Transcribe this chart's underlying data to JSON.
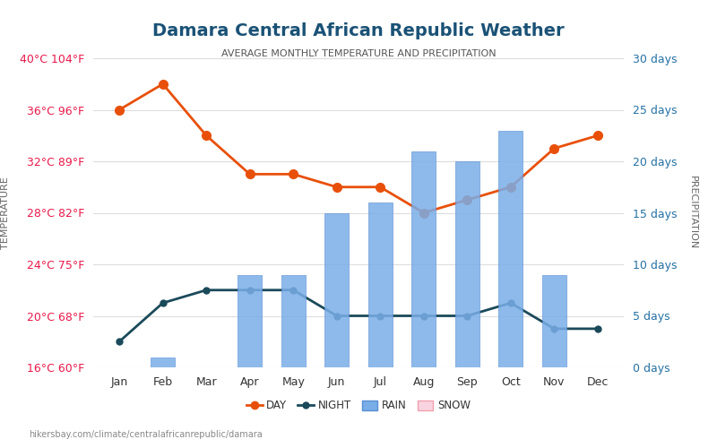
{
  "title": "Damara Central African Republic Weather",
  "subtitle": "AVERAGE MONTHLY TEMPERATURE AND PRECIPITATION",
  "months": [
    "Jan",
    "Feb",
    "Mar",
    "Apr",
    "May",
    "Jun",
    "Jul",
    "Aug",
    "Sep",
    "Oct",
    "Nov",
    "Dec"
  ],
  "day_temps": [
    36,
    38,
    34,
    31,
    31,
    30,
    30,
    28,
    29,
    30,
    33,
    34
  ],
  "night_temps": [
    18,
    21,
    22,
    22,
    22,
    20,
    20,
    20,
    20,
    21,
    19,
    19
  ],
  "rain_days": [
    0,
    1,
    0,
    9,
    9,
    15,
    16,
    21,
    20,
    23,
    9,
    0
  ],
  "ylim_left": [
    16,
    40
  ],
  "ylim_right": [
    0,
    30
  ],
  "yticks_left_celsius": [
    16,
    20,
    24,
    28,
    32,
    36,
    40
  ],
  "yticks_left_fahrenheit": [
    60,
    68,
    75,
    82,
    89,
    96,
    104
  ],
  "yticks_right": [
    0,
    5,
    10,
    15,
    20,
    25,
    30
  ],
  "ytick_right_labels": [
    "0 days",
    "5 days",
    "10 days",
    "15 days",
    "20 days",
    "25 days",
    "30 days"
  ],
  "day_color": "#e8500a",
  "night_color": "#1a4a5a",
  "bar_color": "#7aaee8",
  "bar_edge_color": "#5a8fd4",
  "title_color": "#1a5276",
  "subtitle_color": "#555555",
  "left_tick_color": "#e8194a",
  "right_tick_color": "#2471a3",
  "axis_label_color": "#666666",
  "footer_text": "hikersbay.com/climate/centralafricanrepublic/damara",
  "background_color": "#ffffff",
  "grid_color": "#dddddd"
}
